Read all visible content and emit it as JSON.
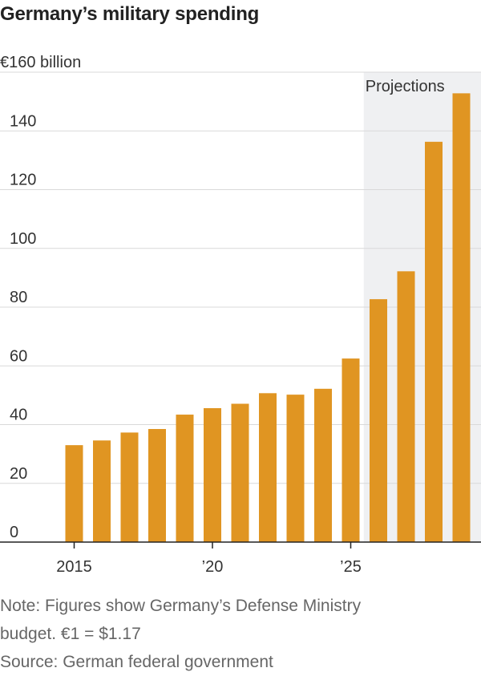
{
  "chart_data": {
    "type": "bar",
    "title": "Germany’s military spending",
    "unit_label": "€160 billion",
    "ylabel": "€ billion",
    "xlabel": "",
    "ylim": [
      0,
      160
    ],
    "y_ticks": [
      {
        "value": 0,
        "label": "0"
      },
      {
        "value": 20,
        "label": "20"
      },
      {
        "value": 40,
        "label": "40"
      },
      {
        "value": 60,
        "label": "60"
      },
      {
        "value": 80,
        "label": "80"
      },
      {
        "value": 100,
        "label": "100"
      },
      {
        "value": 120,
        "label": "120"
      },
      {
        "value": 140,
        "label": "140"
      }
    ],
    "categories": [
      2015,
      2016,
      2017,
      2018,
      2019,
      2020,
      2021,
      2022,
      2023,
      2024,
      2025,
      2026,
      2027,
      2028,
      2029
    ],
    "values": [
      33.0,
      34.6,
      37.3,
      38.5,
      43.4,
      45.6,
      47.1,
      50.7,
      50.2,
      52.2,
      62.5,
      82.7,
      92.2,
      136.3,
      152.8
    ],
    "x_ticks": [
      {
        "value": 2015,
        "label": "2015"
      },
      {
        "value": 2020,
        "label": "’20"
      },
      {
        "value": 2025,
        "label": "’25"
      }
    ],
    "projection": {
      "label": "Projections",
      "from": 2026,
      "to": 2029
    },
    "colors": {
      "bar": "#e09522",
      "projection_shade": "#eff0f2",
      "grid": "#d9d9d9",
      "axis": "#222222"
    }
  },
  "notes": {
    "line1": "Note: Figures show Germany’s Defense Ministry",
    "line2": "budget. €1 = $1.17",
    "source": "Source: German federal government"
  }
}
